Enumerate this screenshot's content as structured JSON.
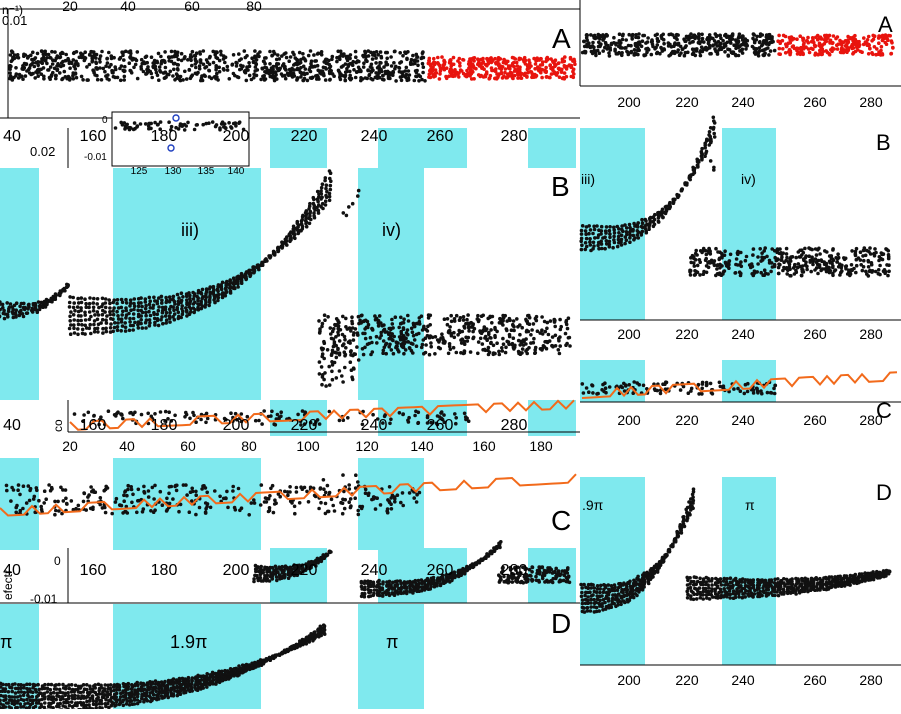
{
  "colors": {
    "band": "#7fe9ee",
    "dots": "#111111",
    "highlight_dots": "#e8140e",
    "trend_line": "#f26a1b",
    "inset_marker": "#1f3fbf",
    "axis": "#000000"
  },
  "panel_letters": {
    "a": "A",
    "b": "B",
    "c": "C",
    "d": "D"
  },
  "bands": {
    "b_left": [
      "iii)",
      "iv)"
    ],
    "b_right": [
      "iii)",
      "iv)"
    ],
    "d_left": [
      "π",
      "1.9π",
      "π"
    ],
    "d_right": [
      ".9π",
      "π"
    ]
  },
  "stray_axis_labels": {
    "a_ytick": "0.01",
    "b_ytick": "0.02",
    "c_ylabel": "co",
    "d_ylabel": "efectr",
    "d_ytick_zero": "0",
    "d_ytick_neg": "-0.01",
    "unit_fragment": "n⁻¹)",
    "inset_ytick_zero": "0",
    "inset_ytick_neg": "-0.01"
  },
  "chart_data": [
    {
      "panel": "A (left)",
      "type": "scatter",
      "x_ticks_top": [
        "20",
        "40",
        "60",
        "80"
      ],
      "x_ticks_bottom": [
        "40",
        "160",
        "180",
        "200",
        "220",
        "240",
        "260",
        "280"
      ],
      "y_ticks": [
        "0.01"
      ],
      "series": [
        {
          "color": "black",
          "x_range": [
            0,
            425
          ],
          "y_value": 0.0
        },
        {
          "color": "red",
          "x_range": [
            427,
            575
          ],
          "y_value": 0.0
        }
      ]
    },
    {
      "panel": "A (right)",
      "type": "scatter",
      "x_ticks": [
        "200",
        "220",
        "240",
        "260",
        "280"
      ],
      "xlim": [
        183,
        288
      ],
      "series": [
        {
          "color": "black",
          "x_range": [
            183,
            248
          ]
        },
        {
          "color": "red",
          "x_range": [
            248,
            286
          ]
        }
      ]
    },
    {
      "panel": "B (right)",
      "type": "scatter",
      "x_ticks": [
        "200",
        "220",
        "240",
        "260",
        "280"
      ],
      "xlim": [
        183,
        288
      ],
      "shaded_x_ranges": [
        [
          183,
          205
        ],
        [
          230,
          247
        ]
      ],
      "band_labels": [
        "iii)",
        "iv)"
      ]
    },
    {
      "panel": "C (left)",
      "type": "line",
      "x_ticks": [
        "20",
        "40",
        "60",
        "80",
        "100",
        "120",
        "140",
        "160",
        "180"
      ],
      "x_ticks_2": [
        "40",
        "160",
        "180",
        "200",
        "220",
        "240",
        "260",
        "280"
      ]
    },
    {
      "panel": "C (right)",
      "type": "line",
      "x_ticks": [
        "200",
        "220",
        "240",
        "260",
        "280"
      ],
      "xlim": [
        183,
        288
      ]
    },
    {
      "panel": "D (left)",
      "type": "scatter",
      "x_ticks": [
        "40",
        "160",
        "180",
        "200",
        "220",
        "240",
        "260",
        "280"
      ],
      "y_ticks": [
        "0",
        "-0.01"
      ]
    },
    {
      "panel": "D (right)",
      "type": "scatter",
      "x_ticks": [
        "200",
        "220",
        "240",
        "260",
        "280"
      ],
      "xlim": [
        183,
        288
      ],
      "shaded_x_ranges": [
        [
          183,
          205
        ],
        [
          230,
          247
        ]
      ],
      "band_labels": [
        ".9π",
        "π"
      ]
    },
    {
      "panel": "inset",
      "type": "scatter",
      "x_ticks": [
        "125",
        "130",
        "135",
        "140"
      ],
      "y_ticks": [
        "0",
        "-0.01"
      ]
    }
  ]
}
